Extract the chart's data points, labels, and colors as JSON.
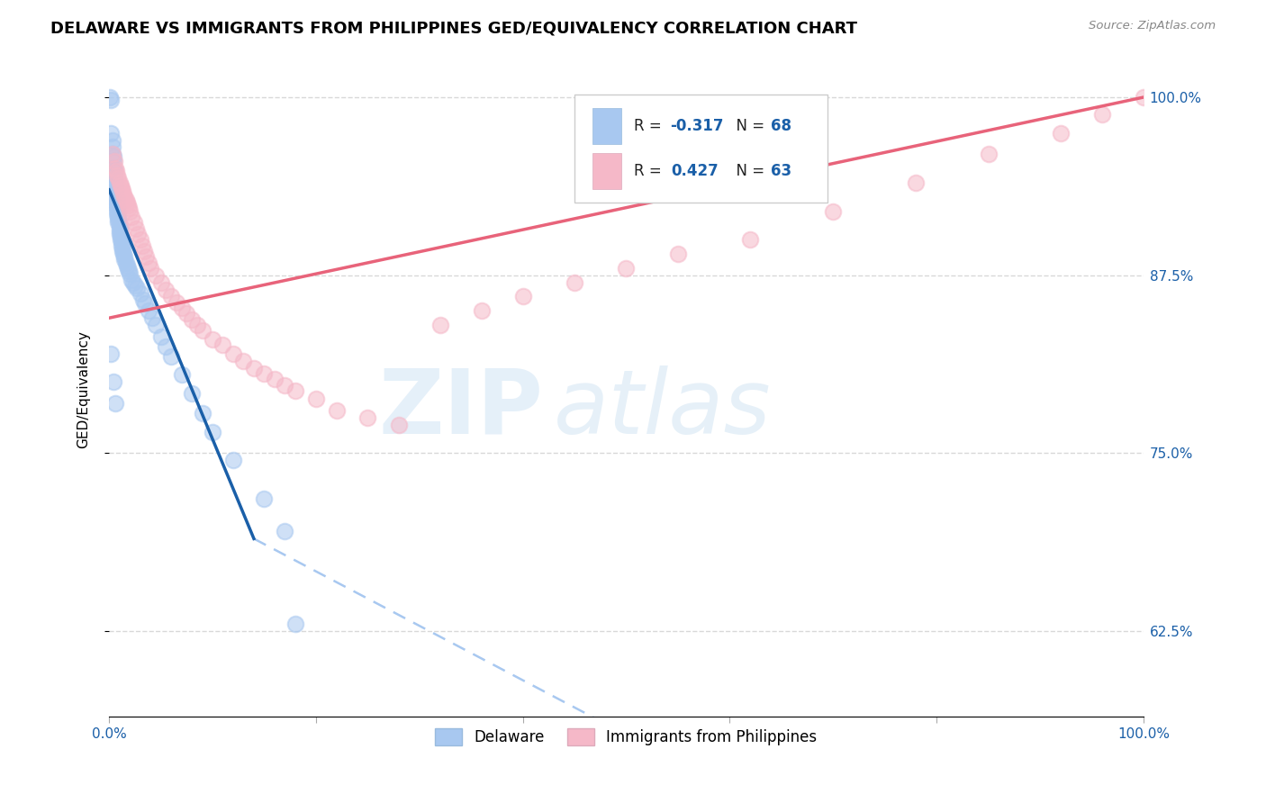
{
  "title": "DELAWARE VS IMMIGRANTS FROM PHILIPPINES GED/EQUIVALENCY CORRELATION CHART",
  "source": "Source: ZipAtlas.com",
  "ylabel": "GED/Equivalency",
  "ytick_labels": [
    "100.0%",
    "87.5%",
    "75.0%",
    "62.5%"
  ],
  "ytick_values": [
    1.0,
    0.875,
    0.75,
    0.625
  ],
  "r_blue": -0.317,
  "n_blue": 68,
  "r_pink": 0.427,
  "n_pink": 63,
  "legend_label_blue": "Delaware",
  "legend_label_pink": "Immigrants from Philippines",
  "blue_color": "#a8c8f0",
  "pink_color": "#f5b8c8",
  "blue_line_color": "#1a5fa8",
  "blue_dash_color": "#a8c8f0",
  "pink_line_color": "#e8637a",
  "xmin": 0.0,
  "xmax": 1.0,
  "ymin": 0.565,
  "ymax": 1.025,
  "title_fontsize": 13,
  "axis_fontsize": 11,
  "tick_fontsize": 11,
  "background_color": "#ffffff",
  "grid_color": "#d8d8d8",
  "blue_scatter_x": [
    0.001,
    0.002,
    0.002,
    0.003,
    0.003,
    0.003,
    0.004,
    0.004,
    0.004,
    0.005,
    0.005,
    0.005,
    0.005,
    0.006,
    0.006,
    0.006,
    0.007,
    0.007,
    0.007,
    0.007,
    0.008,
    0.008,
    0.008,
    0.009,
    0.009,
    0.009,
    0.01,
    0.01,
    0.01,
    0.01,
    0.011,
    0.011,
    0.012,
    0.012,
    0.013,
    0.013,
    0.014,
    0.015,
    0.015,
    0.016,
    0.017,
    0.018,
    0.019,
    0.02,
    0.022,
    0.023,
    0.025,
    0.027,
    0.03,
    0.033,
    0.035,
    0.038,
    0.042,
    0.045,
    0.05,
    0.055,
    0.06,
    0.07,
    0.08,
    0.09,
    0.1,
    0.12,
    0.15,
    0.17,
    0.002,
    0.004,
    0.006,
    0.18
  ],
  "blue_scatter_y": [
    1.0,
    0.998,
    0.975,
    0.97,
    0.965,
    0.96,
    0.958,
    0.955,
    0.95,
    0.948,
    0.945,
    0.942,
    0.94,
    0.938,
    0.935,
    0.932,
    0.93,
    0.928,
    0.926,
    0.924,
    0.922,
    0.92,
    0.918,
    0.916,
    0.914,
    0.912,
    0.91,
    0.908,
    0.906,
    0.904,
    0.902,
    0.9,
    0.898,
    0.896,
    0.894,
    0.892,
    0.89,
    0.888,
    0.886,
    0.884,
    0.882,
    0.88,
    0.878,
    0.876,
    0.872,
    0.87,
    0.868,
    0.866,
    0.862,
    0.858,
    0.855,
    0.85,
    0.845,
    0.84,
    0.832,
    0.825,
    0.818,
    0.805,
    0.792,
    0.778,
    0.765,
    0.745,
    0.718,
    0.695,
    0.82,
    0.8,
    0.785,
    0.63
  ],
  "pink_scatter_x": [
    0.003,
    0.005,
    0.006,
    0.007,
    0.008,
    0.009,
    0.01,
    0.011,
    0.012,
    0.013,
    0.014,
    0.015,
    0.016,
    0.017,
    0.018,
    0.019,
    0.02,
    0.022,
    0.024,
    0.026,
    0.028,
    0.03,
    0.032,
    0.034,
    0.036,
    0.038,
    0.04,
    0.045,
    0.05,
    0.055,
    0.06,
    0.065,
    0.07,
    0.075,
    0.08,
    0.085,
    0.09,
    0.1,
    0.11,
    0.12,
    0.13,
    0.14,
    0.15,
    0.16,
    0.17,
    0.18,
    0.2,
    0.22,
    0.25,
    0.28,
    0.32,
    0.36,
    0.4,
    0.45,
    0.5,
    0.55,
    0.62,
    0.7,
    0.78,
    0.85,
    0.92,
    0.96,
    1.0
  ],
  "pink_scatter_y": [
    0.96,
    0.955,
    0.95,
    0.948,
    0.945,
    0.943,
    0.94,
    0.938,
    0.936,
    0.934,
    0.932,
    0.93,
    0.928,
    0.926,
    0.924,
    0.922,
    0.92,
    0.916,
    0.912,
    0.908,
    0.904,
    0.9,
    0.896,
    0.892,
    0.888,
    0.884,
    0.88,
    0.875,
    0.87,
    0.865,
    0.86,
    0.856,
    0.852,
    0.848,
    0.844,
    0.84,
    0.836,
    0.83,
    0.826,
    0.82,
    0.815,
    0.81,
    0.806,
    0.802,
    0.798,
    0.794,
    0.788,
    0.78,
    0.775,
    0.77,
    0.84,
    0.85,
    0.86,
    0.87,
    0.88,
    0.89,
    0.9,
    0.92,
    0.94,
    0.96,
    0.975,
    0.988,
    1.0
  ],
  "blue_line_x_start": 0.0,
  "blue_line_x_solid_end": 0.14,
  "blue_line_x_dash_end": 0.48,
  "pink_line_x_start": 0.0,
  "pink_line_x_end": 1.0,
  "blue_line_y_start": 0.935,
  "blue_line_y_solid_end": 0.69,
  "blue_line_y_dash_end": 0.56,
  "pink_line_y_start": 0.845,
  "pink_line_y_end": 1.0
}
